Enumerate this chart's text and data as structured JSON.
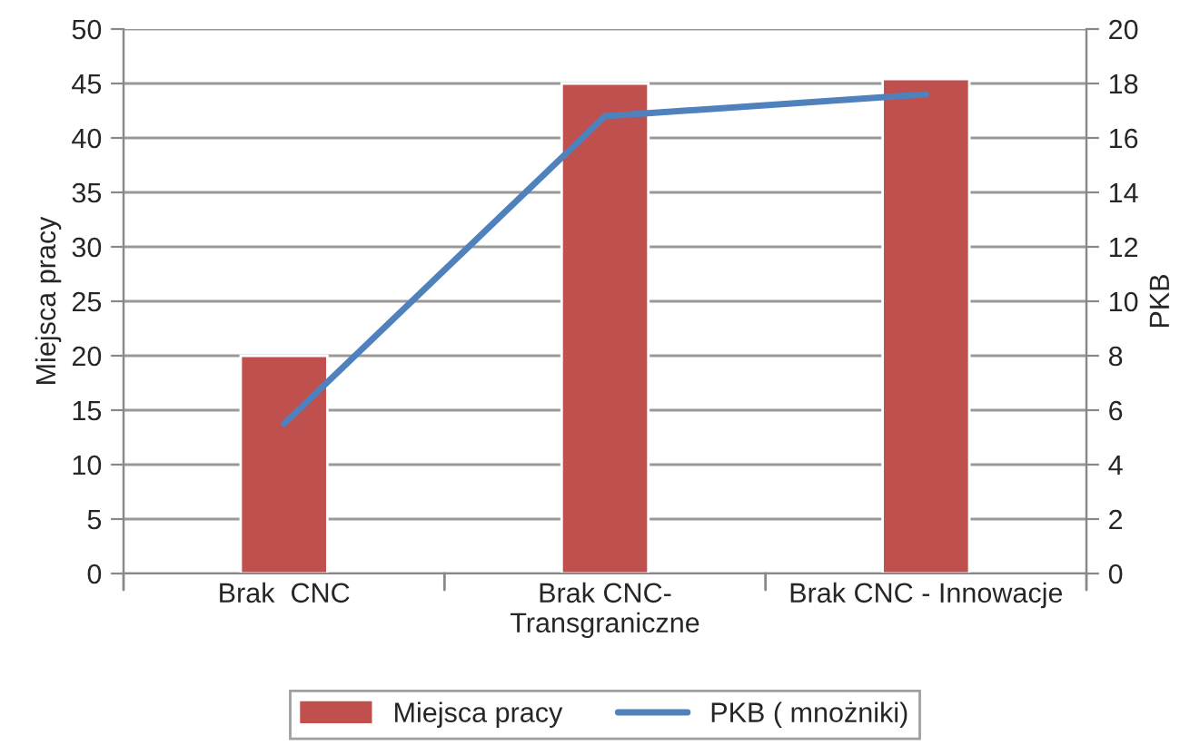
{
  "chart_data": {
    "type": "bar",
    "categories": [
      "Brak  CNC",
      "Brak CNC-\nTransgraniczne",
      "Brak CNC - Innowacje"
    ],
    "series": [
      {
        "name": "Miejsca pracy",
        "color": "#c0504d",
        "values": [
          20,
          45,
          45.4
        ]
      },
      {
        "name": "PKB ( mnożniki)",
        "type": "line",
        "axis": "y2",
        "color": "#4f81bd",
        "values": [
          5.5,
          16.8,
          17.6
        ]
      }
    ],
    "ylabel": "Miejsca pracy",
    "y2label": "PKB",
    "ylim": [
      0,
      50
    ],
    "yticks": [
      0,
      5,
      10,
      15,
      20,
      25,
      30,
      35,
      40,
      45,
      50
    ],
    "y2lim": [
      0,
      20
    ],
    "y2ticks": [
      0,
      2,
      4,
      6,
      8,
      10,
      12,
      14,
      16,
      18,
      20
    ],
    "grid": "y",
    "legend": "bottom"
  }
}
